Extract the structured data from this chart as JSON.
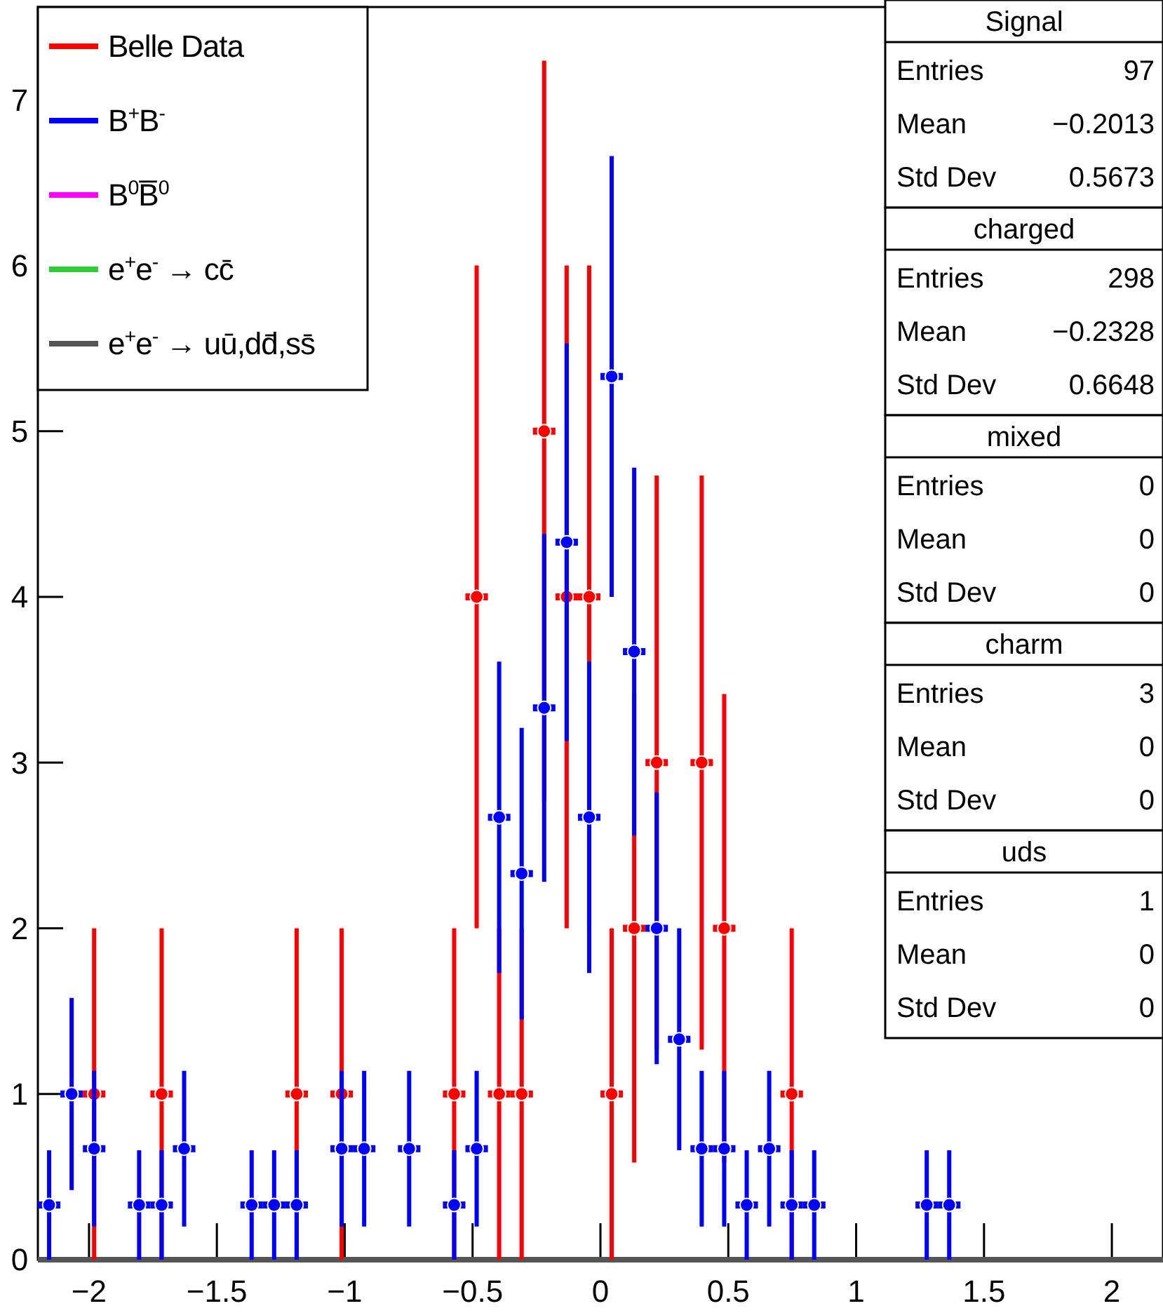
{
  "chart_data": {
    "type": "scatter",
    "marker": "circle",
    "legend": "top left",
    "grid": false,
    "xlim": [
      -2.2,
      2.2
    ],
    "xticks": [
      {
        "value": -2,
        "label": "−2"
      },
      {
        "value": -1.5,
        "label": "−1.5"
      },
      {
        "value": -1,
        "label": "−1"
      },
      {
        "value": -0.5,
        "label": "−0.5"
      },
      0,
      0.5,
      1,
      1.5,
      2
    ],
    "ylim": [
      0,
      7.56
    ],
    "yticks": [
      0,
      1,
      2,
      3,
      4,
      5,
      6,
      7
    ],
    "series": [
      {
        "name": "Belle Data",
        "color": "#ff0000",
        "x": [
          -1.98,
          -1.716,
          -1.188,
          -1.012,
          -0.572,
          -0.484,
          -0.396,
          -0.308,
          -0.22,
          -0.132,
          -0.044,
          0.044,
          0.132,
          0.22,
          0.396,
          0.484,
          0.748
        ],
        "values": [
          1,
          1,
          1,
          1,
          1,
          4,
          1,
          1,
          5,
          4,
          4,
          1,
          2,
          3,
          3,
          2,
          1
        ],
        "errors": [
          1,
          1,
          1,
          1,
          1,
          2,
          1,
          1,
          2.236,
          2,
          2,
          1,
          1.414,
          1.732,
          1.732,
          1.414,
          1
        ],
        "xerrors": [
          0.044,
          0.044,
          0.044,
          0.044,
          0.044,
          0.044,
          0.044,
          0.044,
          0.044,
          0.044,
          0.044,
          0.044,
          0.044,
          0.044,
          0.044,
          0.044,
          0.044
        ]
      },
      {
        "name": "B$^{+}$B$^{-}$",
        "color": "#0000ff",
        "x": [
          -2.156,
          -2.068,
          -1.98,
          -1.804,
          -1.716,
          -1.628,
          -1.364,
          -1.276,
          -1.188,
          -1.012,
          -0.924,
          -0.748,
          -0.572,
          -0.484,
          -0.396,
          -0.308,
          -0.22,
          -0.132,
          -0.044,
          0.044,
          0.132,
          0.22,
          0.308,
          0.396,
          0.484,
          0.572,
          0.66,
          0.748,
          0.836,
          1.276,
          1.364
        ],
        "values": [
          0.33,
          1,
          0.67,
          0.33,
          0.33,
          0.67,
          0.33,
          0.33,
          0.33,
          0.67,
          0.67,
          0.67,
          0.33,
          0.67,
          2.67,
          2.33,
          3.33,
          4.33,
          2.67,
          5.33,
          3.67,
          2,
          1.33,
          0.67,
          0.67,
          0.33,
          0.67,
          0.33,
          0.33,
          0.33,
          0.33
        ],
        "errors": [
          0.33,
          0.58,
          0.47,
          0.33,
          0.33,
          0.47,
          0.33,
          0.33,
          0.33,
          0.47,
          0.47,
          0.47,
          0.33,
          0.47,
          0.94,
          0.88,
          1.05,
          1.2,
          0.94,
          1.33,
          1.11,
          0.82,
          0.67,
          0.47,
          0.47,
          0.33,
          0.47,
          0.33,
          0.33,
          0.33,
          0.33
        ],
        "xerrors": [
          0.044,
          0.044,
          0.044,
          0.044,
          0.044,
          0.044,
          0.044,
          0.044,
          0.044,
          0.044,
          0.044,
          0.044,
          0.044,
          0.044,
          0.044,
          0.044,
          0.044,
          0.044,
          0.044,
          0.044,
          0.044,
          0.044,
          0.044,
          0.044,
          0.044,
          0.044,
          0.044,
          0.044,
          0.044,
          0.044,
          0.044
        ]
      },
      {
        "name": "B$^{0}$B̅$^{0}$",
        "color": "#ff00ff"
      },
      {
        "name": "e$^{+}$e$^{-}$ → cc̄",
        "color": "#33cc33"
      },
      {
        "name": "e$^{+}$e$^{-}$ → uū,dd̄,ss̄",
        "color": "#555555"
      }
    ],
    "annotations": [
      "Signal",
      "Entries",
      "97",
      "Mean",
      "−0.2013",
      "Std Dev",
      "0.5673",
      "charged",
      "Entries",
      "298",
      "Mean",
      "−0.2328",
      "Std Dev",
      "0.6648",
      "mixed",
      "Entries",
      "0",
      "Mean",
      "0",
      "Std Dev",
      "0",
      "charm",
      "Entries",
      "3",
      "Mean",
      "0",
      "Std Dev",
      "0",
      "uds",
      "Entries",
      "1",
      "Mean",
      "0",
      "Std Dev",
      "0"
    ]
  }
}
